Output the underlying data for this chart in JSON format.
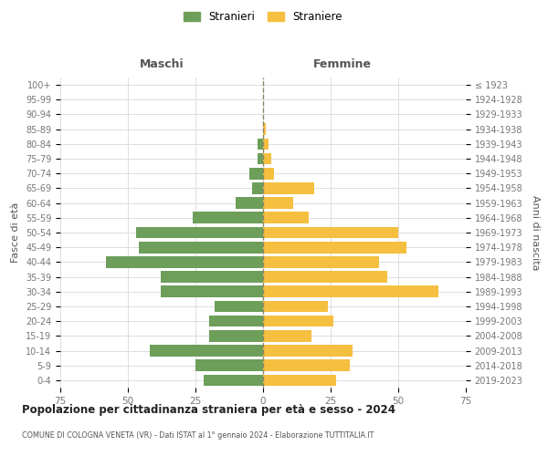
{
  "age_groups_bottom_to_top": [
    "0-4",
    "5-9",
    "10-14",
    "15-19",
    "20-24",
    "25-29",
    "30-34",
    "35-39",
    "40-44",
    "45-49",
    "50-54",
    "55-59",
    "60-64",
    "65-69",
    "70-74",
    "75-79",
    "80-84",
    "85-89",
    "90-94",
    "95-99",
    "100+"
  ],
  "birth_years_bottom_to_top": [
    "2019-2023",
    "2014-2018",
    "2009-2013",
    "2004-2008",
    "1999-2003",
    "1994-1998",
    "1989-1993",
    "1984-1988",
    "1979-1983",
    "1974-1978",
    "1969-1973",
    "1964-1968",
    "1959-1963",
    "1954-1958",
    "1949-1953",
    "1944-1948",
    "1939-1943",
    "1934-1938",
    "1929-1933",
    "1924-1928",
    "≤ 1923"
  ],
  "males_bottom_to_top": [
    22,
    25,
    42,
    20,
    20,
    18,
    38,
    38,
    58,
    46,
    47,
    26,
    10,
    4,
    5,
    2,
    2,
    0,
    0,
    0,
    0
  ],
  "females_bottom_to_top": [
    27,
    32,
    33,
    18,
    26,
    24,
    65,
    46,
    43,
    53,
    50,
    17,
    11,
    19,
    4,
    3,
    2,
    1,
    0,
    0,
    0
  ],
  "male_color": "#6d9e5a",
  "female_color": "#f5bf40",
  "background_color": "#ffffff",
  "grid_color": "#dddddd",
  "title": "Popolazione per cittadinanza straniera per età e sesso - 2024",
  "subtitle": "COMUNE DI COLOGNA VENETA (VR) - Dati ISTAT al 1° gennaio 2024 - Elaborazione TUTTITALIA.IT",
  "xlabel_left": "Maschi",
  "xlabel_right": "Femmine",
  "ylabel_left": "Fasce di età",
  "ylabel_right": "Anni di nascita",
  "legend_male": "Stranieri",
  "legend_female": "Straniere",
  "xlim": 75
}
